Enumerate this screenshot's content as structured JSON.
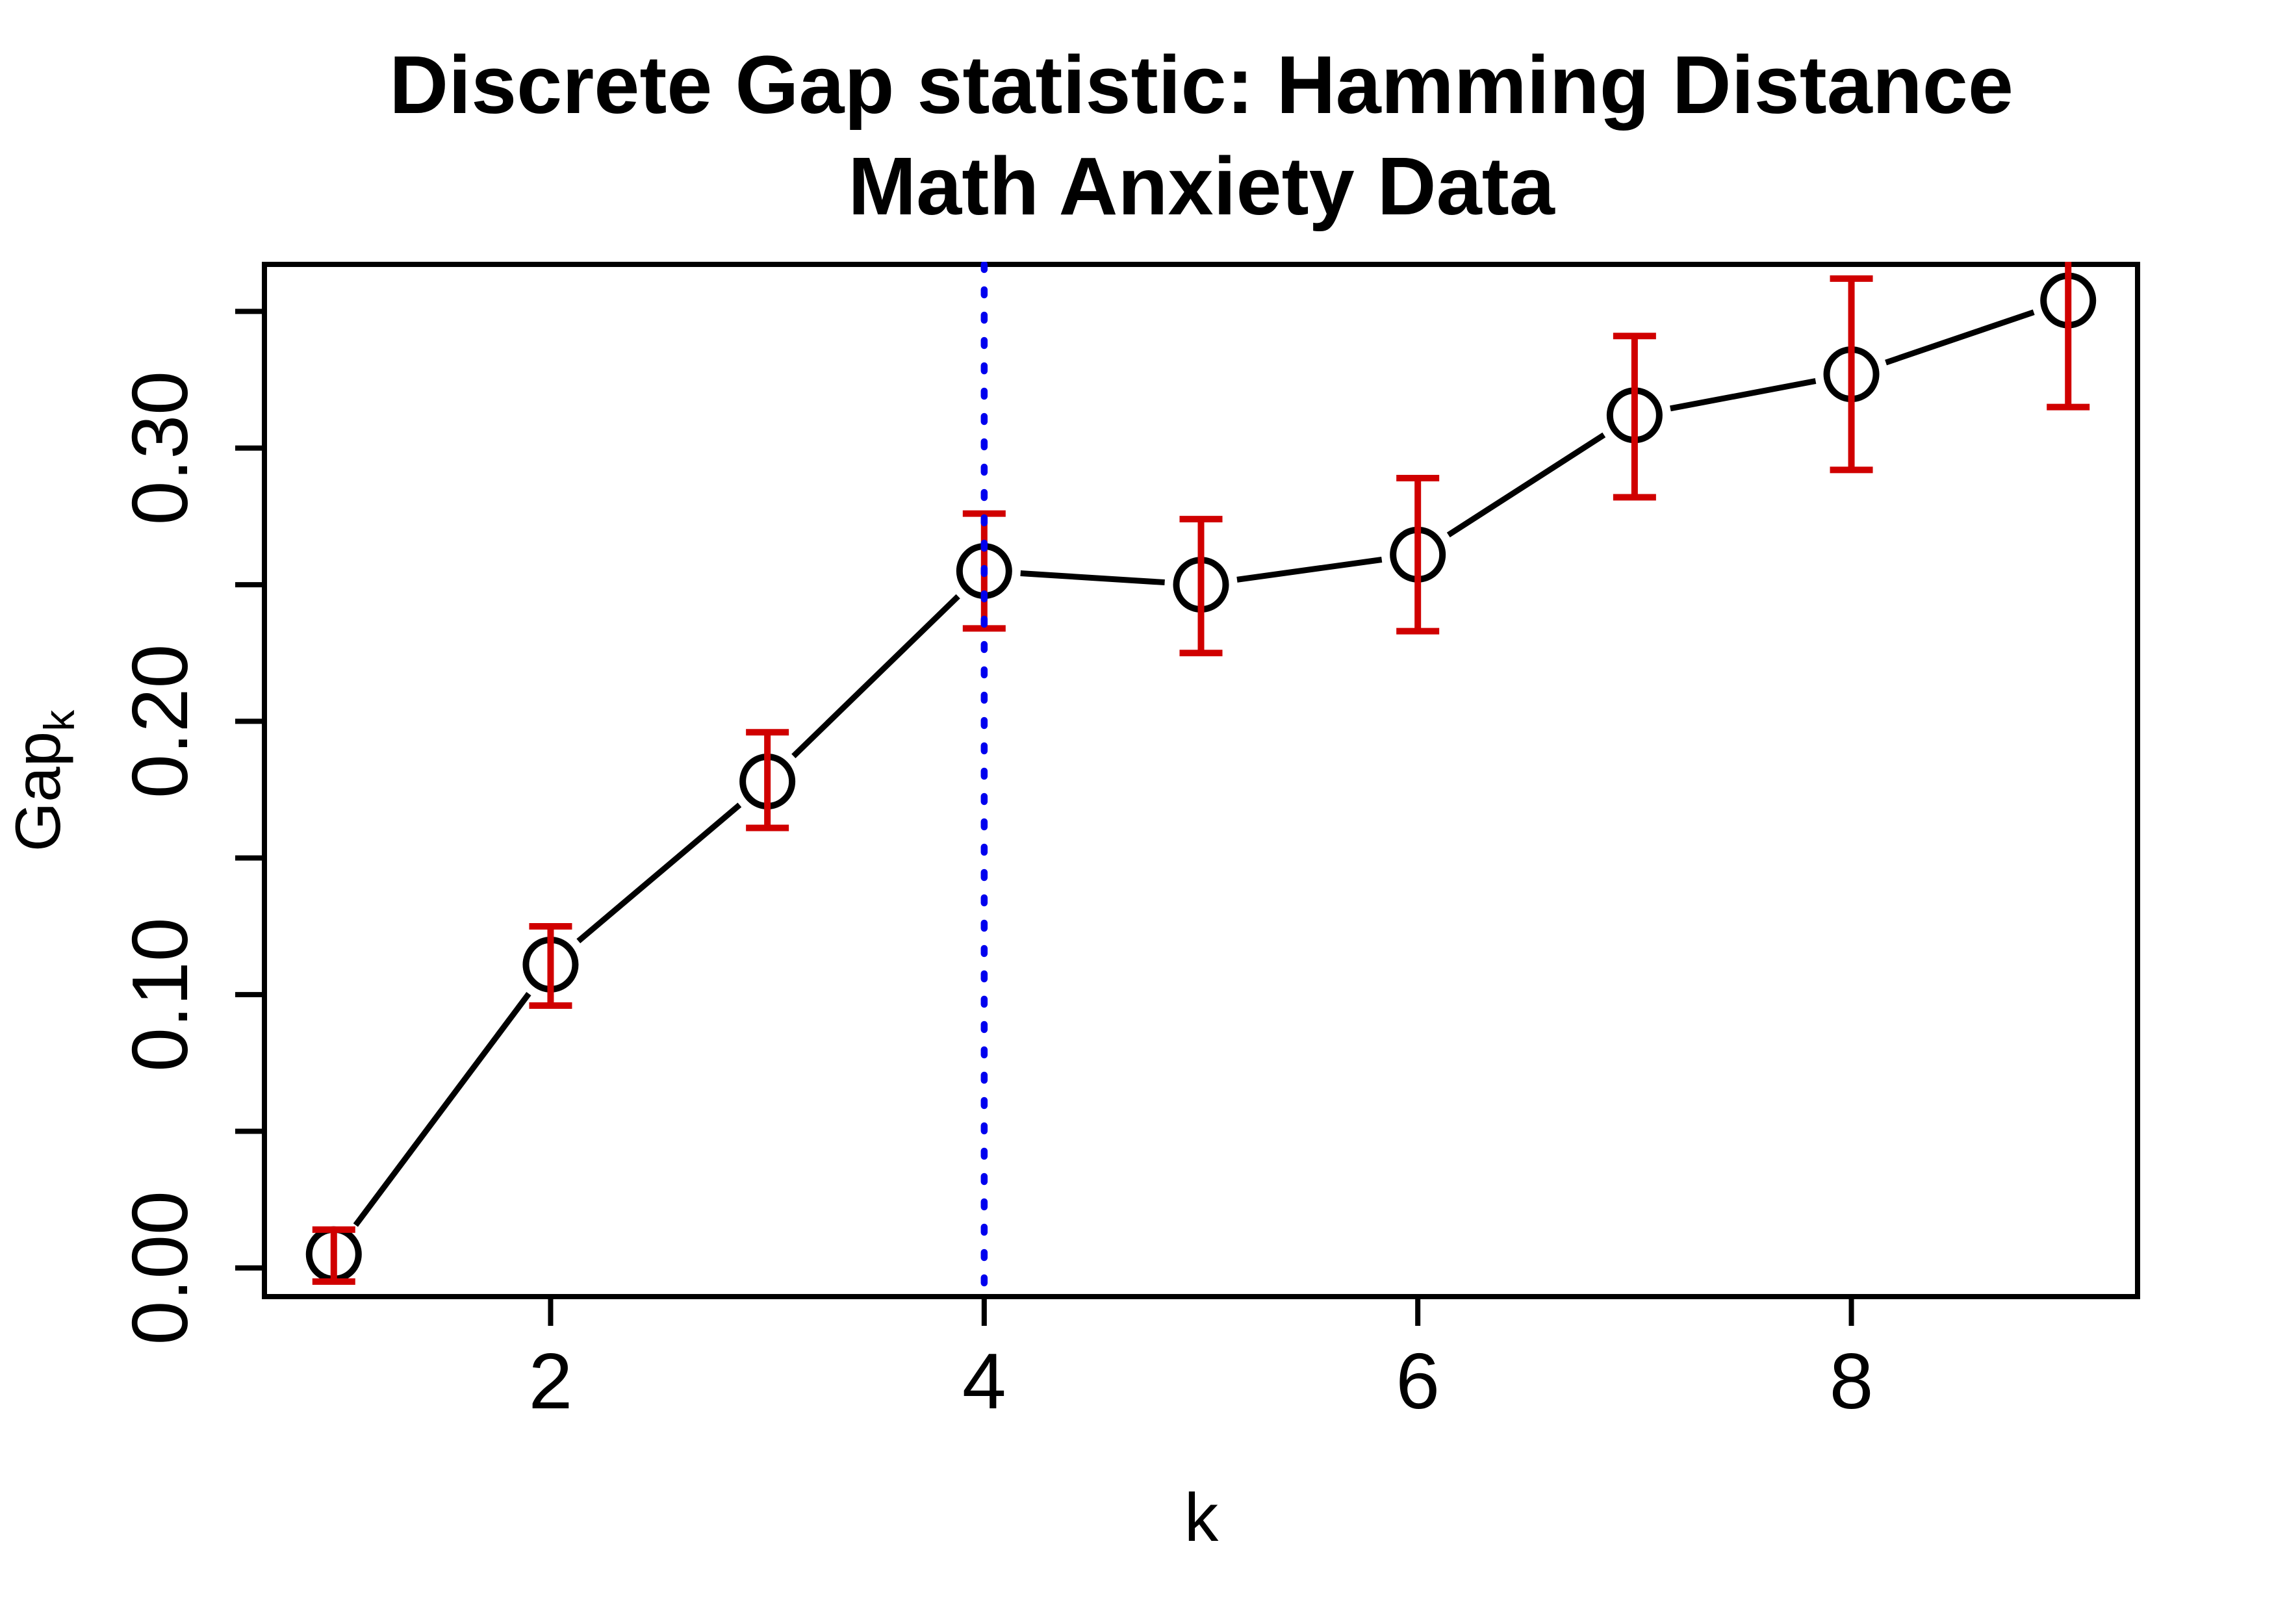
{
  "chart_data": {
    "type": "line",
    "title_line1": "Discrete Gap statistic: Hamming Distance",
    "title_line2": "Math Anxiety Data",
    "xlabel": "k",
    "ylabel_base": "Gap",
    "ylabel_sub": "k",
    "x_tick_labels": [
      "2",
      "4",
      "6",
      "8"
    ],
    "x_tick_values": [
      2,
      4,
      6,
      8
    ],
    "y_tick_values": [
      0,
      0.05,
      0.1,
      0.15,
      0.2,
      0.25,
      0.3,
      0.35
    ],
    "y_labeled_ticks": [
      {
        "value": 0.0,
        "label": "0.00"
      },
      {
        "value": 0.1,
        "label": "0.10"
      },
      {
        "value": 0.2,
        "label": "0.20"
      },
      {
        "value": 0.3,
        "label": "0.30"
      }
    ],
    "xlim": [
      0.68,
      9.32
    ],
    "ylim": [
      -0.0105,
      0.3672
    ],
    "grid": false,
    "legend": null,
    "vline": {
      "x": 4,
      "style": "dotted",
      "color": "#0000EE"
    },
    "colors": {
      "points_and_line": "#000000",
      "error_bars": "#D00000",
      "vline": "#0000EE",
      "axis": "#000000",
      "background": "#FFFFFF"
    },
    "series": [
      {
        "name": "Gap statistic",
        "marker": "open-circle",
        "points": [
          {
            "k": 1,
            "gap": 0.005,
            "lo": -0.005,
            "hi": 0.014
          },
          {
            "k": 2,
            "gap": 0.111,
            "lo": 0.096,
            "hi": 0.125
          },
          {
            "k": 3,
            "gap": 0.178,
            "lo": 0.161,
            "hi": 0.196
          },
          {
            "k": 4,
            "gap": 0.255,
            "lo": 0.234,
            "hi": 0.276
          },
          {
            "k": 5,
            "gap": 0.25,
            "lo": 0.225,
            "hi": 0.274
          },
          {
            "k": 6,
            "gap": 0.261,
            "lo": 0.233,
            "hi": 0.289
          },
          {
            "k": 7,
            "gap": 0.312,
            "lo": 0.282,
            "hi": 0.341
          },
          {
            "k": 8,
            "gap": 0.327,
            "lo": 0.292,
            "hi": 0.362
          },
          {
            "k": 9,
            "gap": 0.354,
            "lo": 0.315,
            "hi": 0.376
          }
        ]
      }
    ]
  }
}
